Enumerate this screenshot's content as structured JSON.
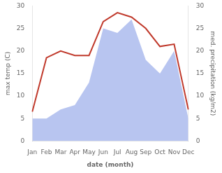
{
  "chart_data": {
    "type": "line",
    "categories": [
      "Jan",
      "Feb",
      "Mar",
      "Apr",
      "May",
      "Jun",
      "Jul",
      "Aug",
      "Sep",
      "Oct",
      "Nov",
      "Dec"
    ],
    "xlabel": "date (month)",
    "ylabel": "max temp (C)",
    "y2label": "med. precipitation (kg/m2)",
    "series": [
      {
        "type": "area",
        "axis": "y2",
        "color": "#b8c5f0",
        "values": [
          5,
          5,
          7,
          8,
          13,
          25,
          24,
          27,
          18,
          15,
          20,
          5
        ]
      },
      {
        "type": "line",
        "color": "#c0392b",
        "values": [
          6.5,
          18.5,
          20.0,
          19.0,
          19.0,
          26.5,
          28.5,
          27.5,
          25.0,
          21.0,
          21.5,
          7.0
        ]
      }
    ],
    "ylim": [
      0,
      30
    ],
    "yticks": [
      0,
      5,
      10,
      15,
      20,
      25,
      30
    ],
    "y2lim": [
      0,
      30
    ],
    "y2ticks": [
      0,
      5,
      10,
      15,
      20,
      25,
      30
    ],
    "grid": false
  }
}
